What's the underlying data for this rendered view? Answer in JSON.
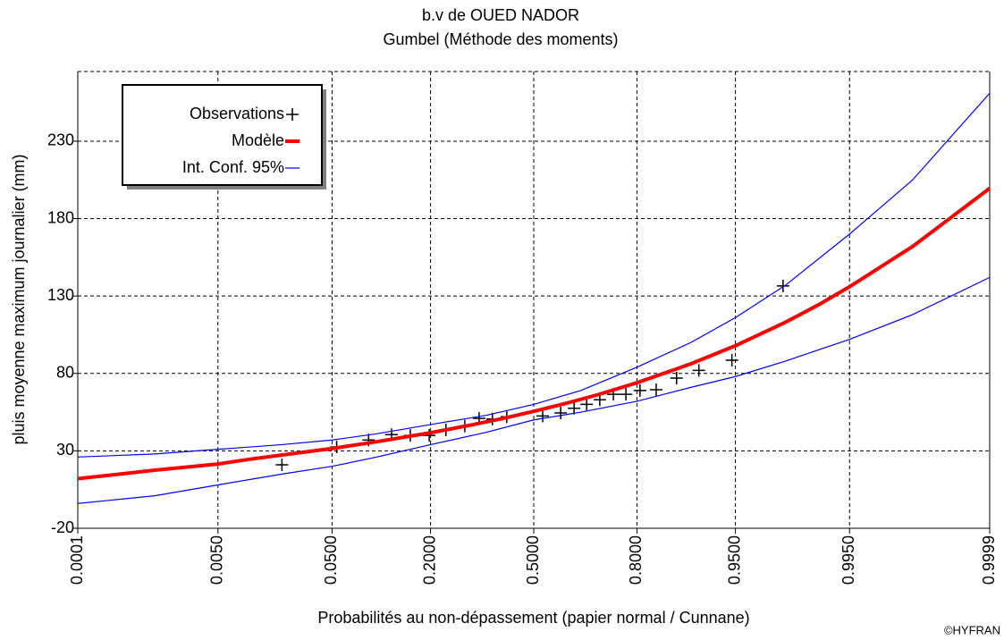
{
  "chart_data": {
    "type": "probability-plot",
    "title": "b.v de OUED NADOR",
    "subtitle": "Gumbel (Méthode des moments)",
    "x_label": "Probabilités au non-dépassement (papier normal / Cunnane)",
    "y_label": "pluis moyenne maximum journalier (mm)",
    "credit": "©HYFRAN",
    "xscale": "probit",
    "xlim": [
      0.0001,
      0.9999
    ],
    "xticks": [
      0.0001,
      {
        "value": 0.005,
        "label": "0.0050"
      },
      {
        "value": 0.05,
        "label": "0.0500"
      },
      {
        "value": 0.2,
        "label": "0.2000"
      },
      {
        "value": 0.5,
        "label": "0.5000"
      },
      {
        "value": 0.8,
        "label": "0.8000"
      },
      {
        "value": 0.95,
        "label": "0.9500"
      },
      {
        "value": 0.995,
        "label": "0.9950"
      },
      0.9999
    ],
    "ylim": [
      -20,
      275
    ],
    "yticks": [
      -20,
      30,
      80,
      130,
      180,
      230
    ],
    "grid": true,
    "legend": "upper left",
    "series": [
      {
        "name": "Observations",
        "color": "#000000",
        "marker": "+",
        "x": [
          0.02,
          0.054,
          0.089,
          0.123,
          0.157,
          0.197,
          0.237,
          0.287,
          0.328,
          0.368,
          0.413,
          0.529,
          0.587,
          0.629,
          0.667,
          0.705,
          0.742,
          0.774,
          0.807,
          0.841,
          0.878,
          0.911,
          0.947,
          0.979
        ],
        "values": [
          21,
          32.5,
          37,
          40.5,
          40,
          40,
          43.5,
          46,
          51,
          50.5,
          52,
          52.5,
          54.5,
          57.5,
          60,
          63,
          66.5,
          66.5,
          69,
          69.5,
          77,
          82,
          88.5,
          136.5
        ]
      },
      {
        "name": "Modèle",
        "color": "#ff0000",
        "x": [
          0.0001,
          0.001,
          0.005,
          0.01,
          0.05,
          0.1,
          0.2,
          0.3,
          0.4,
          0.5,
          0.6,
          0.7,
          0.8,
          0.9,
          0.95,
          0.98,
          0.99,
          0.995,
          0.999,
          0.9999
        ],
        "values": [
          12,
          17.5,
          21.5,
          24.5,
          31.5,
          35.9,
          41.7,
          46.5,
          50.9,
          55.5,
          60.5,
          66.3,
          74,
          86.2,
          97.9,
          113.1,
          124.5,
          136,
          162,
          199.6
        ]
      },
      {
        "name": "Int. Conf. 95%",
        "color": "#0000ff",
        "x": [
          0.0001,
          0.001,
          0.005,
          0.02,
          0.05,
          0.1,
          0.2,
          0.35,
          0.5,
          0.65,
          0.8,
          0.9,
          0.95,
          0.98,
          0.995,
          0.999,
          0.9999
        ],
        "upper": [
          26,
          28,
          31,
          34,
          37,
          41,
          47,
          53,
          60,
          69,
          84,
          100,
          116,
          137,
          170,
          205,
          261
        ],
        "lower": [
          -4,
          1,
          8,
          15,
          20,
          26,
          34,
          42,
          50,
          55,
          62,
          71,
          78,
          88,
          102,
          118,
          142
        ]
      }
    ]
  }
}
